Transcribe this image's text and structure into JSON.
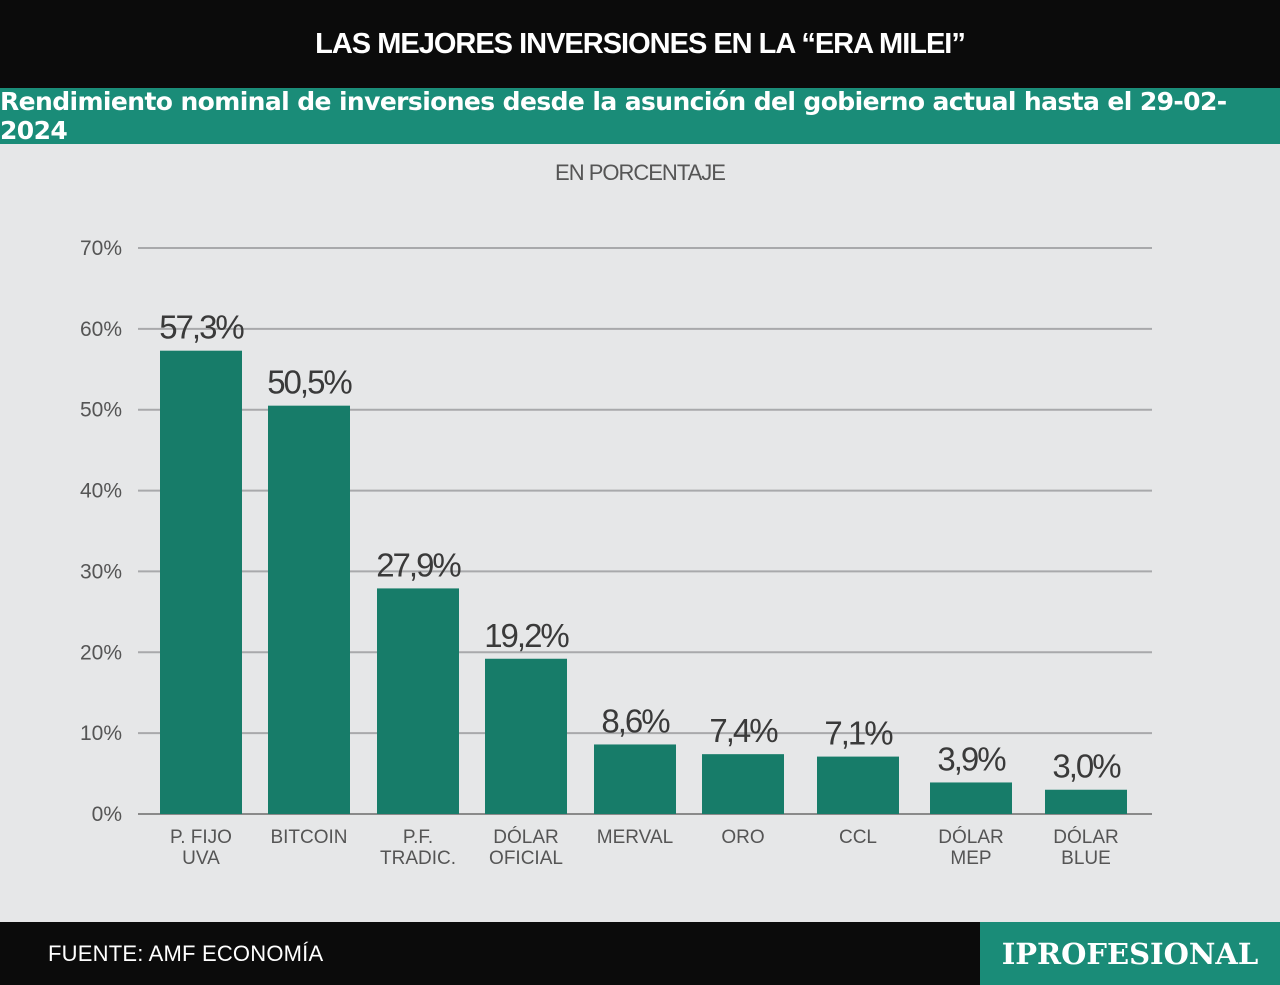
{
  "header": {
    "title": "LAS MEJORES INVERSIONES EN LA “ERA MILEI”",
    "subtitle": "Rendimiento nominal de inversiones desde la asunción del gobierno actual hasta el 29-02-2024"
  },
  "colors": {
    "bar": "#177c69",
    "accent": "#1a8c78",
    "header_bg": "#0b0b0b",
    "background": "#e6e7e8"
  },
  "chart_data": {
    "type": "bar",
    "units_label": "EN PORCENTAJE",
    "categories": [
      [
        "P. FIJO",
        "UVA"
      ],
      [
        "BITCOIN"
      ],
      [
        "P.F.",
        "TRADIC."
      ],
      [
        "DÓLAR",
        "OFICIAL"
      ],
      [
        "MERVAL"
      ],
      [
        "ORO"
      ],
      [
        "CCL"
      ],
      [
        "DÓLAR",
        "MEP"
      ],
      [
        "DÓLAR",
        "BLUE"
      ]
    ],
    "values": [
      57.3,
      50.5,
      27.9,
      19.2,
      8.6,
      7.4,
      7.1,
      3.9,
      3.0
    ],
    "value_labels": [
      "57,3%",
      "50,5%",
      "27,9%",
      "19,2%",
      "8,6%",
      "7,4%",
      "7,1%",
      "3,9%",
      "3,0%"
    ],
    "ylim": [
      0,
      70
    ],
    "yticks": [
      0,
      10,
      20,
      30,
      40,
      50,
      60,
      70
    ],
    "ytick_labels": [
      "0%",
      "10%",
      "20%",
      "30%",
      "40%",
      "50%",
      "60%",
      "70%"
    ],
    "grid": true,
    "legend": "none"
  },
  "footer": {
    "source": "FUENTE: AMF ECONOMÍA",
    "brand": "IPROFESIONAL"
  }
}
